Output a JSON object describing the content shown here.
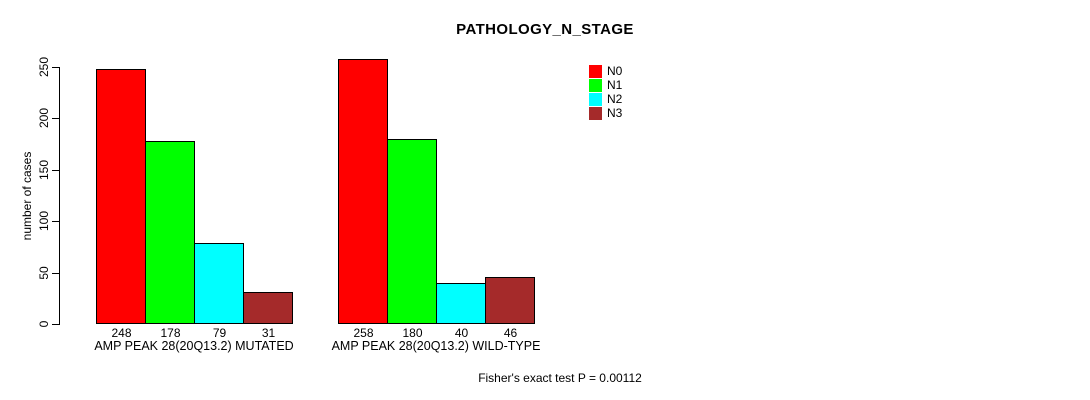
{
  "chart_data": {
    "type": "bar",
    "title": "PATHOLOGY_N_STAGE",
    "ylabel": "number of cases",
    "xlabel": "",
    "ylim": [
      0,
      250
    ],
    "yticks": [
      0,
      50,
      100,
      150,
      200,
      250
    ],
    "grid": false,
    "legend_position": "top-right",
    "bar_value_labels": true,
    "categories": [
      "AMP PEAK 28(20Q13.2) MUTATED",
      "AMP PEAK 28(20Q13.2) WILD-TYPE"
    ],
    "series": [
      {
        "name": "N0",
        "color": "#ff0000",
        "values": [
          248,
          258
        ]
      },
      {
        "name": "N1",
        "color": "#00ff00",
        "values": [
          178,
          180
        ]
      },
      {
        "name": "N2",
        "color": "#00ffff",
        "values": [
          79,
          40
        ]
      },
      {
        "name": "N3",
        "color": "#a52a2a",
        "values": [
          31,
          46
        ]
      }
    ],
    "annotation": "Fisher's exact test P = 0.00112"
  },
  "colors": {
    "background": "#ffffff",
    "axis": "#000000",
    "bar_border": "#000000",
    "text": "#000000"
  }
}
